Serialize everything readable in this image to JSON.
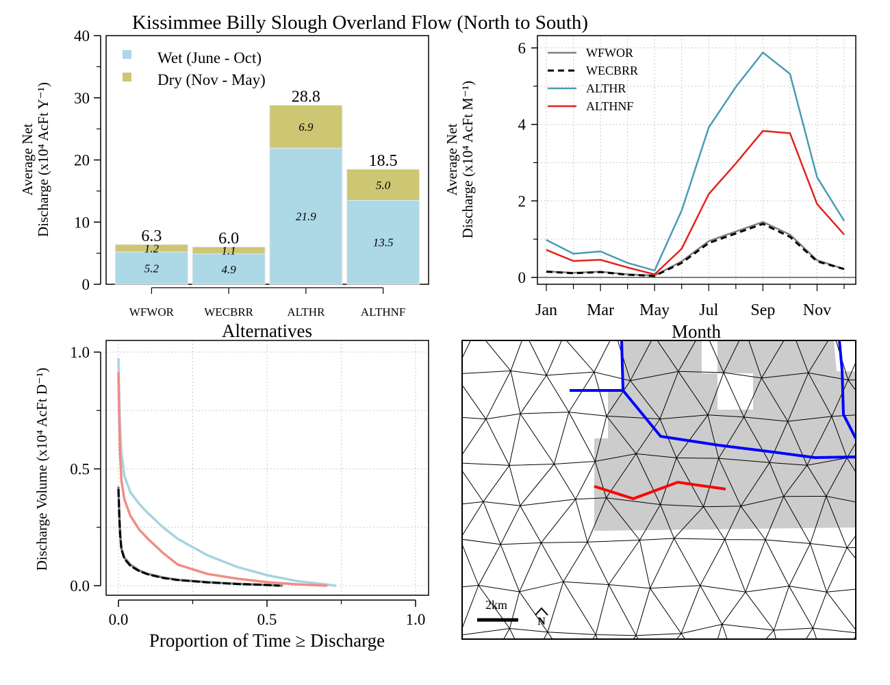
{
  "figure_title": "Kissimmee Billy Slough Overland Flow (North to South)",
  "chart_data": [
    {
      "type": "bar",
      "stacked": true,
      "categories": [
        "WFWOR",
        "WECBRR",
        "ALTHR",
        "ALTHNF"
      ],
      "series": [
        {
          "name": "Wet (June - Oct)",
          "values": [
            5.2,
            4.9,
            21.9,
            13.5
          ],
          "color": "#add8e6"
        },
        {
          "name": "Dry (Nov - May)",
          "values": [
            1.2,
            1.1,
            6.9,
            5.0
          ],
          "color": "#cdc673"
        }
      ],
      "totals": [
        "6.3",
        "6.0",
        "28.8",
        "18.5"
      ],
      "wet_labels": [
        "5.2",
        "4.9",
        "21.9",
        "13.5"
      ],
      "dry_labels": [
        "1.2",
        "1.1",
        "6.9",
        "5.0"
      ],
      "xlabel": "Alternatives",
      "ylabel_line1": "Average Net",
      "ylabel_line2": "Discharge (x10⁴ AcFt Y⁻¹)",
      "ylim": [
        0,
        40
      ],
      "yticks": [
        "0",
        "10",
        "20",
        "30",
        "40"
      ],
      "legend_position": "top-left"
    },
    {
      "type": "line",
      "x": [
        1,
        2,
        3,
        4,
        5,
        6,
        7,
        8,
        9,
        10,
        11,
        12
      ],
      "series": [
        {
          "name": "WFWOR",
          "color": "#808080",
          "dash": "solid",
          "values": [
            0.16,
            0.12,
            0.15,
            0.08,
            0.05,
            0.42,
            0.95,
            1.2,
            1.45,
            1.12,
            0.45,
            0.22
          ]
        },
        {
          "name": "WECBRR",
          "color": "#000000",
          "dash": "dashed",
          "values": [
            0.15,
            0.11,
            0.14,
            0.07,
            0.04,
            0.38,
            0.9,
            1.15,
            1.4,
            1.06,
            0.42,
            0.22
          ]
        },
        {
          "name": "ALTHR",
          "color": "#4a9bb3",
          "dash": "solid",
          "values": [
            0.98,
            0.62,
            0.68,
            0.38,
            0.18,
            1.75,
            3.92,
            4.98,
            5.88,
            5.32,
            2.62,
            1.48
          ]
        },
        {
          "name": "ALTHNF",
          "color": "#e3221b",
          "dash": "solid",
          "values": [
            0.72,
            0.43,
            0.46,
            0.26,
            0.08,
            0.75,
            2.18,
            2.98,
            3.83,
            3.77,
            1.92,
            1.12
          ]
        }
      ],
      "xticks": [
        "Jan",
        "Mar",
        "May",
        "Jul",
        "Sep",
        "Nov"
      ],
      "xlabel": "Month",
      "ylabel_line1": "Average Net",
      "ylabel_line2": "Discharge (x10⁴ AcFt M⁻¹)",
      "ylim": [
        0,
        6.5
      ],
      "yticks": [
        "0",
        "2",
        "4",
        "6"
      ],
      "grid": true,
      "legend_position": "top-left"
    },
    {
      "type": "line",
      "subtype": "exceedance",
      "series": [
        {
          "name": "ALTHR",
          "color": "#a6d3e0",
          "dash": "solid",
          "x": [
            0,
            0.002,
            0.005,
            0.01,
            0.02,
            0.04,
            0.07,
            0.1,
            0.15,
            0.2,
            0.3,
            0.4,
            0.5,
            0.6,
            0.7,
            0.73
          ],
          "y": [
            0.97,
            0.85,
            0.7,
            0.57,
            0.47,
            0.4,
            0.35,
            0.31,
            0.25,
            0.2,
            0.13,
            0.08,
            0.045,
            0.02,
            0.005,
            0.0
          ]
        },
        {
          "name": "ALTHNF",
          "color": "#f08c84",
          "dash": "solid",
          "x": [
            0,
            0.002,
            0.005,
            0.01,
            0.02,
            0.04,
            0.07,
            0.1,
            0.15,
            0.2,
            0.3,
            0.4,
            0.5,
            0.6,
            0.7
          ],
          "y": [
            0.91,
            0.75,
            0.58,
            0.45,
            0.37,
            0.3,
            0.24,
            0.2,
            0.14,
            0.09,
            0.05,
            0.03,
            0.015,
            0.006,
            0.0
          ]
        },
        {
          "name": "WFWOR",
          "color": "#808080",
          "dash": "solid",
          "x": [
            0,
            0.003,
            0.006,
            0.01,
            0.02,
            0.04,
            0.07,
            0.1,
            0.15,
            0.2,
            0.3,
            0.4,
            0.5,
            0.55
          ],
          "y": [
            0.42,
            0.3,
            0.22,
            0.16,
            0.12,
            0.09,
            0.065,
            0.05,
            0.035,
            0.025,
            0.015,
            0.008,
            0.003,
            0.0
          ]
        },
        {
          "name": "WECBRR",
          "color": "#000000",
          "dash": "dashed",
          "x": [
            0,
            0.003,
            0.006,
            0.01,
            0.02,
            0.04,
            0.07,
            0.1,
            0.15,
            0.2,
            0.3,
            0.4,
            0.5,
            0.54
          ],
          "y": [
            0.41,
            0.29,
            0.21,
            0.155,
            0.115,
            0.085,
            0.062,
            0.048,
            0.033,
            0.024,
            0.014,
            0.007,
            0.003,
            0.0
          ]
        }
      ],
      "xlabel": "Proportion of Time ≥ Discharge",
      "ylabel": "Discharge Volume (x10⁴ AcFt D⁻¹)",
      "xlim": [
        0,
        1
      ],
      "ylim": [
        0,
        1
      ],
      "xticks": [
        "0.0",
        "0.5",
        "1.0"
      ],
      "yticks": [
        "0.0",
        "0.5",
        "1.0"
      ],
      "grid": true
    }
  ],
  "map": {
    "scalebar_label": "2km",
    "north_arrow": "north-arrow-icon",
    "mesh_color": "#000000",
    "flow_zone_color": "#cccccc",
    "boundary_color": "#0000ff",
    "transect_color": "#ff0000"
  }
}
